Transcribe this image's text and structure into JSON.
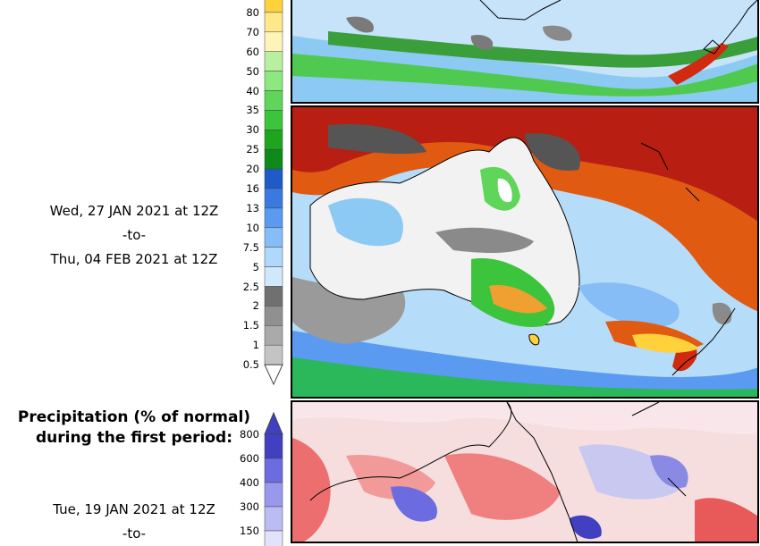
{
  "top_period": {
    "from": "Wed, 27 JAN 2021 at 12Z",
    "separator": "-to-",
    "to": "Thu, 04 FEB 2021 at 12Z"
  },
  "precip_legend": {
    "ticks": [
      "80",
      "70",
      "60",
      "50",
      "40",
      "35",
      "30",
      "25",
      "20",
      "16",
      "13",
      "10",
      "7.5",
      "5",
      "2.5",
      "2",
      "1.5",
      "1",
      "0.5"
    ],
    "colors": [
      "#ffd23c",
      "#ffe88a",
      "#fff4b8",
      "#b8f0a0",
      "#8ee880",
      "#5fd65a",
      "#3cc43c",
      "#1ea51e",
      "#0d8a1a",
      "#1e5bc8",
      "#3a7ae0",
      "#5a9af0",
      "#86bdf6",
      "#b0d8fa",
      "#d0e8fb",
      "#707070",
      "#909090",
      "#aaaaaa",
      "#c4c4c4"
    ]
  },
  "bottom_section": {
    "title_line1": "Precipitation (% of normal)",
    "title_line2": "during the first period:",
    "ticks": [
      "800",
      "600",
      "400",
      "300",
      "150"
    ],
    "colors": [
      "#4040c0",
      "#6c6ce0",
      "#9898ec",
      "#bcbcf4",
      "#e2e2fa"
    ],
    "from": "Tue, 19 JAN 2021 at 12Z",
    "separator": "-to-"
  }
}
